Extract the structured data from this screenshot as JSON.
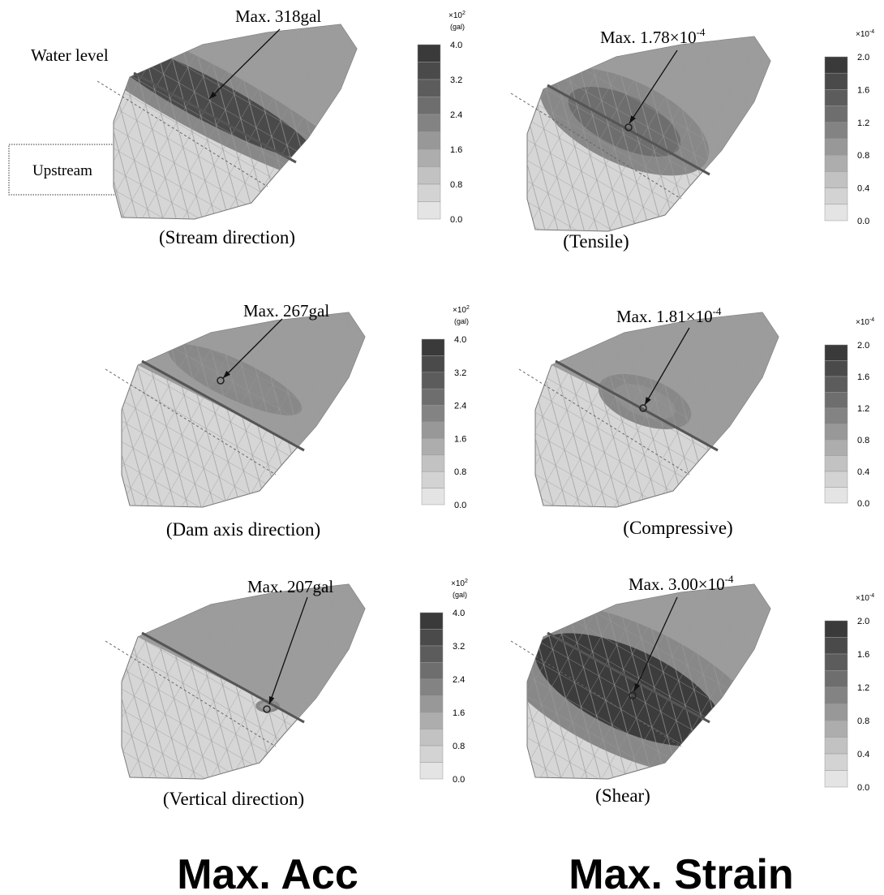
{
  "annotations": {
    "water_level": "Water level",
    "upstream": "Upstream"
  },
  "columns": [
    {
      "title": "Max. Acc"
    },
    {
      "title": "Max. Strain"
    }
  ],
  "panels": [
    {
      "caption": "(Stream direction)",
      "max_text": "Max. 318gal",
      "unit": "×10",
      "unit_exp": "2",
      "unit_name": "(gal)",
      "ticks": [
        "4.0",
        "3.2",
        "2.4",
        "1.6",
        "0.8",
        "0.0"
      ]
    },
    {
      "caption": "(Tensile)",
      "max_text": "Max. 1.78×10",
      "max_exp": "-4",
      "unit": "×10",
      "unit_exp": "-4",
      "ticks": [
        "2.0",
        "1.6",
        "1.2",
        "0.8",
        "0.4",
        "0.0"
      ]
    },
    {
      "caption": "(Dam axis direction)",
      "max_text": "Max. 267gal",
      "unit": "×10",
      "unit_exp": "2",
      "unit_name": "(gal)",
      "ticks": [
        "4.0",
        "3.2",
        "2.4",
        "1.6",
        "0.8",
        "0.0"
      ]
    },
    {
      "caption": "(Compressive)",
      "max_text": "Max. 1.81×10",
      "max_exp": "-4",
      "unit": "×10",
      "unit_exp": "-4",
      "ticks": [
        "2.0",
        "1.6",
        "1.2",
        "0.8",
        "0.4",
        "0.0"
      ]
    },
    {
      "caption": "(Vertical direction)",
      "max_text": "Max. 207gal",
      "unit": "×10",
      "unit_exp": "2",
      "unit_name": "(gal)",
      "ticks": [
        "4.0",
        "3.2",
        "2.4",
        "1.6",
        "0.8",
        "0.0"
      ]
    },
    {
      "caption": "(Shear)",
      "max_text": "Max. 3.00×10",
      "max_exp": "-4",
      "unit": "×10",
      "unit_exp": "-4",
      "ticks": [
        "2.0",
        "1.6",
        "1.2",
        "0.8",
        "0.4",
        "0.0"
      ]
    }
  ]
}
